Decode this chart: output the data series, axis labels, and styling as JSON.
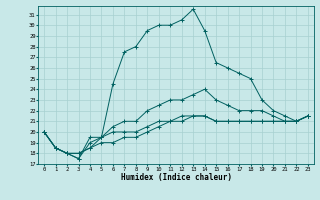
{
  "xlabel": "Humidex (Indice chaleur)",
  "ylabel": "",
  "background_color": "#c8e8e8",
  "grid_color": "#a8d0d0",
  "line_color": "#006060",
  "xlim": [
    -0.5,
    23.5
  ],
  "ylim": [
    17,
    31.8
  ],
  "xticks": [
    0,
    1,
    2,
    3,
    4,
    5,
    6,
    7,
    8,
    9,
    10,
    11,
    12,
    13,
    14,
    15,
    16,
    17,
    18,
    19,
    20,
    21,
    22,
    23
  ],
  "yticks": [
    17,
    18,
    19,
    20,
    21,
    22,
    23,
    24,
    25,
    26,
    27,
    28,
    29,
    30,
    31
  ],
  "series": [
    {
      "x": [
        0,
        1,
        2,
        3,
        4,
        5,
        6,
        7,
        8,
        9,
        10,
        11,
        12,
        13,
        14,
        15,
        16,
        17,
        18,
        19,
        20,
        21,
        22,
        23
      ],
      "y": [
        20,
        18.5,
        18,
        17.5,
        19,
        19.5,
        20.5,
        21,
        21,
        22,
        22.5,
        23,
        23,
        23.5,
        24,
        23,
        22.5,
        22,
        22,
        22,
        21.5,
        21,
        21,
        21.5
      ]
    },
    {
      "x": [
        0,
        1,
        2,
        3,
        4,
        5,
        6,
        7,
        8,
        9,
        10,
        11,
        12,
        13,
        14,
        15,
        16,
        17,
        18,
        19,
        20,
        21,
        22,
        23
      ],
      "y": [
        20,
        18.5,
        18,
        18,
        18.5,
        19,
        19,
        19.5,
        19.5,
        20,
        20.5,
        21,
        21,
        21.5,
        21.5,
        21,
        21,
        21,
        21,
        21,
        21,
        21,
        21,
        21.5
      ]
    },
    {
      "x": [
        0,
        1,
        2,
        3,
        4,
        5,
        6,
        7,
        8,
        9,
        10,
        11,
        12,
        13,
        14,
        15,
        16,
        17,
        18,
        19,
        20,
        21,
        22,
        23
      ],
      "y": [
        20,
        18.5,
        18,
        18,
        18.5,
        19.5,
        20,
        20,
        20,
        20.5,
        21,
        21,
        21.5,
        21.5,
        21.5,
        21,
        21,
        21,
        21,
        21,
        21,
        21,
        21,
        21.5
      ]
    },
    {
      "x": [
        0,
        1,
        2,
        3,
        4,
        5,
        6,
        7,
        8,
        9,
        10,
        11,
        12,
        13,
        14,
        15,
        16,
        17,
        18,
        19,
        20,
        21,
        22,
        23
      ],
      "y": [
        20,
        18.5,
        18,
        17.5,
        19.5,
        19.5,
        24.5,
        27.5,
        28,
        29.5,
        30,
        30,
        30.5,
        31.5,
        29.5,
        26.5,
        26,
        25.5,
        25,
        23,
        22,
        21.5,
        21,
        21.5
      ]
    }
  ]
}
